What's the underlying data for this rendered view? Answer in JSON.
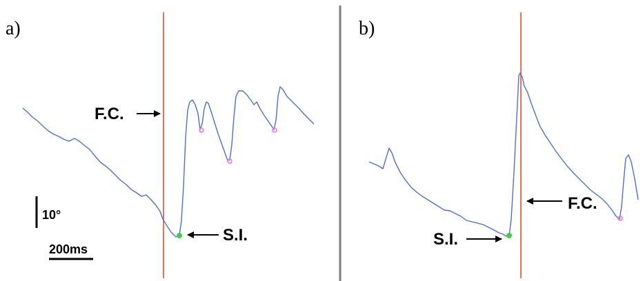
{
  "panels": {
    "a": {
      "label": "a)",
      "fc_label": "F.C.",
      "si_label": "S.I.",
      "trace_color": "#4a6fd8",
      "marker_color": "#ff66ff",
      "si_color": "#3fd13f",
      "line_color": "#f07050"
    },
    "b": {
      "label": "b)",
      "fc_label": "F.C.",
      "si_label": "S.I."
    }
  },
  "scalebar": {
    "angle_label": "10°",
    "time_label": "200ms"
  },
  "colors": {
    "divider": "#7f7f7f",
    "arrow": "#000000"
  }
}
